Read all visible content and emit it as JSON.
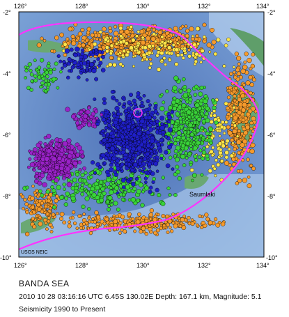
{
  "map": {
    "region_label": "Saumlaki",
    "credit": "USGS NEIC",
    "lon_ticks": [
      "126°",
      "128°",
      "130°",
      "132°",
      "134°"
    ],
    "lat_ticks": [
      "-2°",
      "-4°",
      "-6°",
      "-8°",
      "-10°"
    ],
    "colors": {
      "sea": "#5f86c3",
      "sea_light": "#9fc0e6",
      "land": "#5f9e6a",
      "plate_boundary": "#ff33ff",
      "depth_shallow": "#f59a2c",
      "depth_intermediate_1": "#ffe64a",
      "depth_intermediate_2": "#3ad33a",
      "depth_deep_1": "#1f1fc8",
      "depth_deep_2": "#9a22c8",
      "epicenter_marker": "#ff33ff"
    }
  },
  "caption": {
    "title": "BANDA SEA",
    "event": "2010 10 28 03:16:16 UTC 6.45S 130.02E Depth: 167.1 km, Magnitude: 5.1",
    "range": "Seismicity 1990 to Present"
  }
}
